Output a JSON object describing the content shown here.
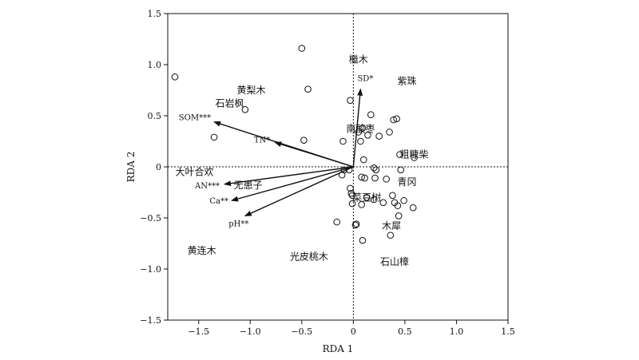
{
  "chart_data": {
    "type": "scatter",
    "xlabel": "RDA 1",
    "ylabel": "RDA 2",
    "xlim": [
      -1.8,
      1.5
    ],
    "ylim": [
      -1.5,
      1.5
    ],
    "xticks": [
      -1.5,
      -1.0,
      -0.5,
      0,
      0.5,
      1.0,
      1.5
    ],
    "xtick_labels": [
      "−1.5",
      "−1.0",
      "−0.5",
      "0",
      "0.5",
      "1.0",
      "1.5"
    ],
    "yticks": [
      -1.5,
      -1.0,
      -0.5,
      0,
      0.5,
      1.0,
      1.5
    ],
    "ytick_labels": [
      "−1.5",
      "−1.0",
      "−0.5",
      "0",
      "0.5",
      "1.0",
      "1.5"
    ],
    "zero_lines": true,
    "grid": false,
    "vectors": [
      {
        "label": "SD*",
        "x": 0.07,
        "y": 0.76
      },
      {
        "label": "SOM***",
        "x": -1.35,
        "y": 0.44
      },
      {
        "label": "TN*",
        "x": -0.76,
        "y": 0.24
      },
      {
        "label": "AN***",
        "x": -1.25,
        "y": -0.17
      },
      {
        "label": "Ca**",
        "x": -1.18,
        "y": -0.33
      },
      {
        "label": "pH**",
        "x": -1.05,
        "y": -0.48
      }
    ],
    "species_labels": [
      {
        "label": "檵木",
        "x": 0.05,
        "y": 1.05
      },
      {
        "label": "紫珠",
        "x": 0.52,
        "y": 0.84
      },
      {
        "label": "黄梨木",
        "x": -0.99,
        "y": 0.75
      },
      {
        "label": "石岩枫",
        "x": -1.2,
        "y": 0.62
      },
      {
        "label": "南酸枣",
        "x": 0.07,
        "y": 0.37
      },
      {
        "label": "粗糠柴",
        "x": 0.59,
        "y": 0.12
      },
      {
        "label": "大叶合欢",
        "x": -1.54,
        "y": -0.05
      },
      {
        "label": "无患子",
        "x": -1.02,
        "y": -0.18
      },
      {
        "label": "青冈",
        "x": 0.52,
        "y": -0.15
      },
      {
        "label": "菜豆树",
        "x": 0.13,
        "y": -0.3
      },
      {
        "label": "木犀",
        "x": 0.37,
        "y": -0.58
      },
      {
        "label": "黄连木",
        "x": -1.47,
        "y": -0.82
      },
      {
        "label": "光皮桃木",
        "x": -0.43,
        "y": -0.88
      },
      {
        "label": "石山樟",
        "x": 0.4,
        "y": -0.93
      }
    ],
    "sites": [
      {
        "x": -1.73,
        "y": 0.88
      },
      {
        "x": -0.5,
        "y": 1.16
      },
      {
        "x": -0.44,
        "y": 0.76
      },
      {
        "x": -1.05,
        "y": 0.56
      },
      {
        "x": -0.03,
        "y": 0.65
      },
      {
        "x": -1.35,
        "y": 0.29
      },
      {
        "x": -0.48,
        "y": 0.26
      },
      {
        "x": -0.1,
        "y": 0.25
      },
      {
        "x": 0.17,
        "y": 0.51
      },
      {
        "x": 0.42,
        "y": 0.47
      },
      {
        "x": 0.39,
        "y": 0.46
      },
      {
        "x": 0.35,
        "y": 0.34
      },
      {
        "x": 0.25,
        "y": 0.3
      },
      {
        "x": 0.14,
        "y": 0.31
      },
      {
        "x": 0.09,
        "y": 0.38
      },
      {
        "x": 0.07,
        "y": 0.25
      },
      {
        "x": 0.05,
        "y": 0.34
      },
      {
        "x": 0.45,
        "y": 0.12
      },
      {
        "x": 0.59,
        "y": 0.09
      },
      {
        "x": 0.1,
        "y": 0.07
      },
      {
        "x": 0.2,
        "y": -0.01
      },
      {
        "x": 0.22,
        "y": -0.03
      },
      {
        "x": 0.46,
        "y": -0.03
      },
      {
        "x": -0.04,
        "y": -0.03
      },
      {
        "x": -0.09,
        "y": -0.03
      },
      {
        "x": -0.11,
        "y": -0.08
      },
      {
        "x": 0.08,
        "y": -0.1
      },
      {
        "x": 0.11,
        "y": -0.11
      },
      {
        "x": 0.21,
        "y": -0.11
      },
      {
        "x": 0.32,
        "y": -0.12
      },
      {
        "x": -0.03,
        "y": -0.21
      },
      {
        "x": -0.02,
        "y": -0.26
      },
      {
        "x": -0.01,
        "y": -0.28
      },
      {
        "x": 0.08,
        "y": -0.37
      },
      {
        "x": 0.13,
        "y": -0.3
      },
      {
        "x": 0.2,
        "y": -0.32
      },
      {
        "x": 0.29,
        "y": -0.35
      },
      {
        "x": 0.38,
        "y": -0.28
      },
      {
        "x": 0.4,
        "y": -0.35
      },
      {
        "x": 0.43,
        "y": -0.38
      },
      {
        "x": 0.49,
        "y": -0.33
      },
      {
        "x": 0.58,
        "y": -0.4
      },
      {
        "x": 0.44,
        "y": -0.48
      },
      {
        "x": -0.01,
        "y": -0.36
      },
      {
        "x": -0.16,
        "y": -0.54
      },
      {
        "x": 0.03,
        "y": -0.56
      },
      {
        "x": 0.02,
        "y": -0.57
      },
      {
        "x": 0.36,
        "y": -0.67
      },
      {
        "x": 0.09,
        "y": -0.72
      }
    ]
  }
}
